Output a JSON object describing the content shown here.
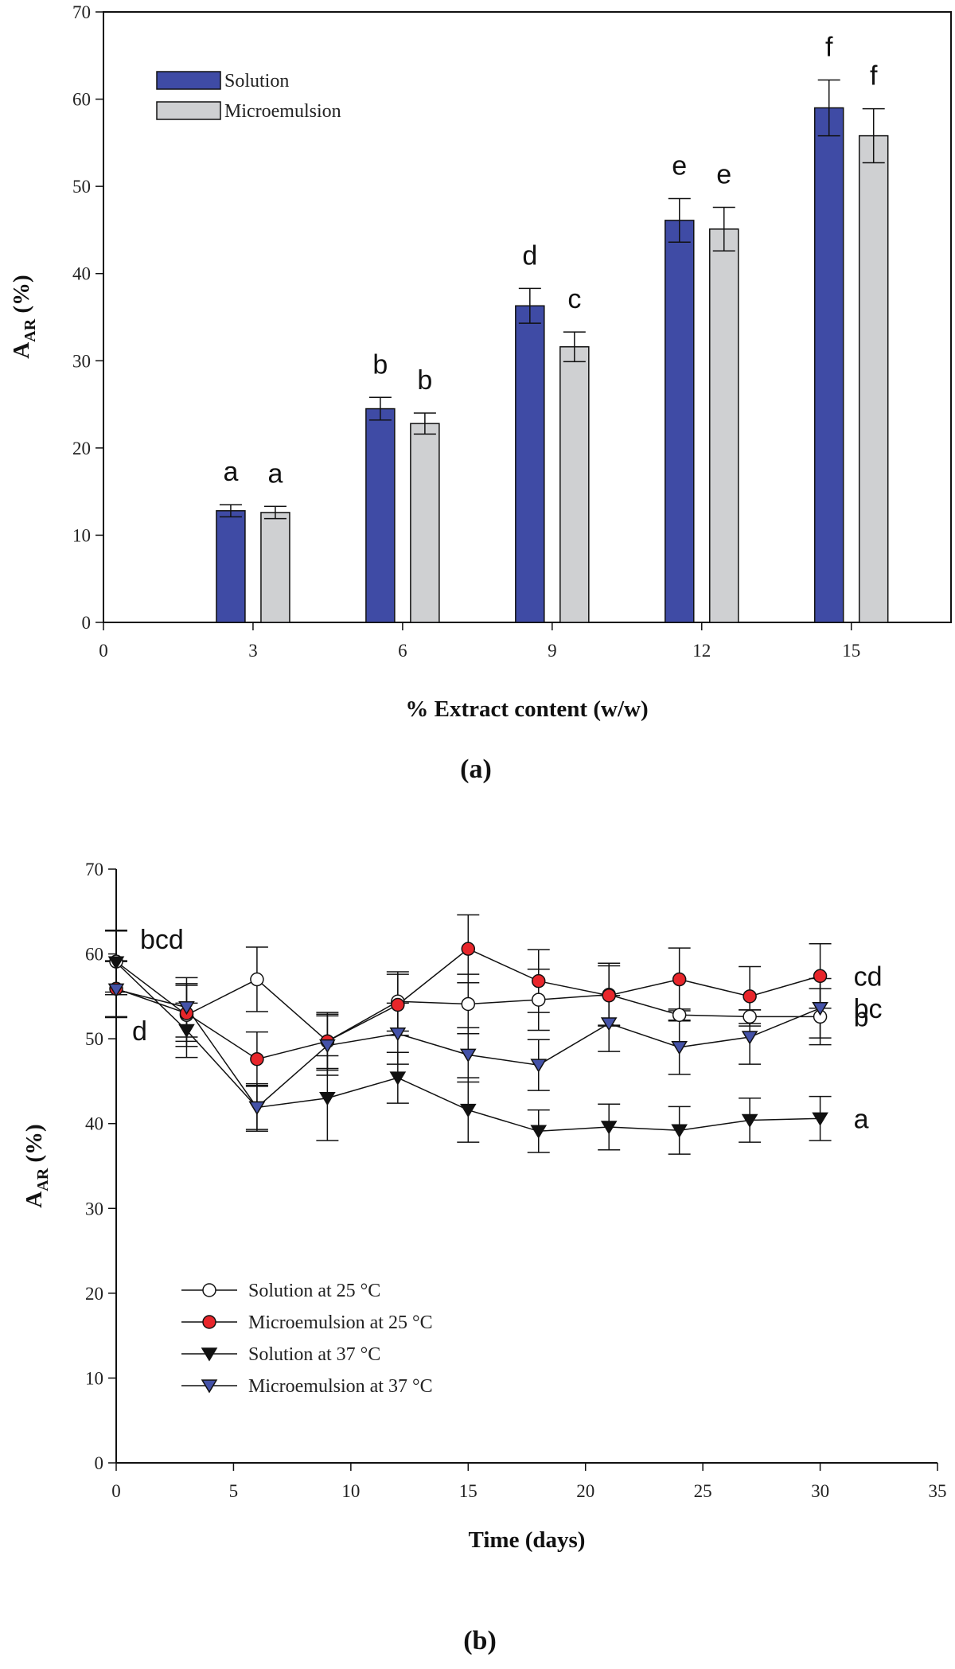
{
  "colors": {
    "solution_bar": "#3f4ba5",
    "microemulsion_bar": "#cfd0d2",
    "red_marker": "#e8262b",
    "blue_marker": "#4452a8",
    "axis": "#111111"
  },
  "chart_data": [
    {
      "id": "a",
      "type": "bar",
      "panel_label": "(a)",
      "title": "",
      "xlabel": "% Extract content (w/w)",
      "ylabel_main": "A",
      "ylabel_sub": "AR",
      "ylabel_tail": " (%)",
      "xlim": [
        0,
        17
      ],
      "ylim": [
        0,
        70
      ],
      "xticks": [
        0,
        3,
        6,
        9,
        12,
        15
      ],
      "yticks": [
        0,
        10,
        20,
        30,
        40,
        50,
        60,
        70
      ],
      "categories": [
        3,
        6,
        9,
        12,
        15
      ],
      "series": [
        {
          "name": "Solution",
          "values": [
            12.8,
            24.5,
            36.3,
            46.1,
            59.0
          ],
          "errors": [
            0.7,
            1.3,
            2.0,
            2.5,
            3.2
          ],
          "letters": [
            "a",
            "b",
            "d",
            "e",
            "f"
          ]
        },
        {
          "name": "Microemulsion",
          "values": [
            12.6,
            22.8,
            31.6,
            45.1,
            55.8
          ],
          "errors": [
            0.7,
            1.2,
            1.7,
            2.5,
            3.1
          ],
          "letters": [
            "a",
            "b",
            "c",
            "e",
            "f"
          ]
        }
      ],
      "legend": {
        "position": "top-left",
        "entries": [
          "Solution",
          "Microemulsion"
        ]
      }
    },
    {
      "id": "b",
      "type": "line",
      "panel_label": "(b)",
      "title": "",
      "xlabel": "Time (days)",
      "ylabel_main": "A",
      "ylabel_sub": "AR",
      "ylabel_tail": " (%)",
      "xlim": [
        0,
        35
      ],
      "ylim": [
        0,
        70
      ],
      "xticks": [
        0,
        5,
        10,
        15,
        20,
        25,
        30,
        35
      ],
      "yticks": [
        0,
        10,
        20,
        30,
        40,
        50,
        60,
        70
      ],
      "x": [
        0,
        3,
        6,
        9,
        12,
        15,
        18,
        21,
        24,
        27,
        30
      ],
      "series": [
        {
          "name": "Solution at 25 °C",
          "marker": "circle-open",
          "values": [
            59.1,
            52.8,
            57.0,
            49.7,
            54.4,
            54.1,
            54.6,
            55.2,
            52.8,
            52.6,
            52.6
          ],
          "errors": [
            3.6,
            3.7,
            3.8,
            3.2,
            3.5,
            3.5,
            3.6,
            3.7,
            0.7,
            0.8,
            3.3
          ],
          "letter": "b"
        },
        {
          "name": "Microemulsion at 25 °C",
          "marker": "circle-red",
          "values": [
            55.9,
            53.0,
            47.6,
            49.7,
            54.0,
            60.6,
            56.8,
            55.1,
            57.0,
            55.0,
            57.4
          ],
          "errors": [
            3.3,
            3.3,
            3.2,
            3.4,
            3.6,
            4.0,
            3.7,
            3.5,
            3.7,
            3.5,
            3.8
          ],
          "letter": "cd"
        },
        {
          "name": "Solution at 37 °C",
          "marker": "triangle-down-black",
          "values": [
            59.0,
            51.0,
            41.9,
            43.0,
            45.4,
            41.6,
            39.1,
            39.6,
            39.2,
            40.4,
            40.6
          ],
          "errors": [
            3.8,
            3.2,
            2.8,
            5.0,
            3.0,
            3.8,
            2.5,
            2.7,
            2.8,
            2.6,
            2.6
          ],
          "letter": "a"
        },
        {
          "name": "Microemulsion at 37 °C",
          "marker": "triangle-down-blue",
          "values": [
            55.8,
            53.7,
            41.9,
            49.2,
            50.6,
            48.1,
            46.9,
            51.8,
            49.0,
            50.2,
            53.6
          ],
          "errors": [
            3.3,
            3.5,
            2.6,
            3.5,
            3.6,
            3.2,
            3.0,
            3.3,
            3.2,
            3.2,
            3.5
          ],
          "letter": "bc"
        }
      ],
      "annotations": [
        "bcd",
        "d"
      ],
      "legend": {
        "position": "bottom-left",
        "entries": [
          "Solution at 25 °C",
          "Microemulsion at 25 °C",
          "Solution at 37 °C",
          "Microemulsion at 37 °C"
        ]
      }
    }
  ]
}
